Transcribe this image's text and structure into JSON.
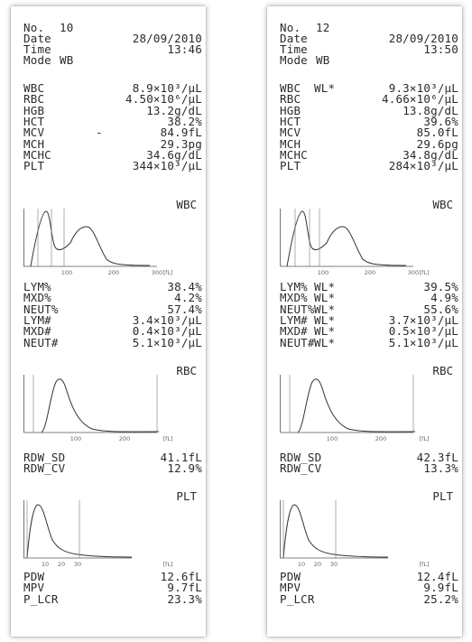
{
  "printouts": [
    {
      "header": [
        {
          "label": "No.",
          "value": "10",
          "align": "left"
        },
        {
          "label": "Date",
          "value": "28/09/2010",
          "align": "right"
        },
        {
          "label": "Time",
          "value": "13:46",
          "align": "right"
        },
        {
          "label": "Mode",
          "value": "WB",
          "align": "left"
        }
      ],
      "cbc": [
        {
          "label": "WBC",
          "flag": "",
          "value": "8.9×10³/µL"
        },
        {
          "label": "RBC",
          "flag": "",
          "value": "4.50×10⁶/µL"
        },
        {
          "label": "HGB",
          "flag": "",
          "value": "13.2g/dL"
        },
        {
          "label": "HCT",
          "flag": "",
          "value": "38.2%"
        },
        {
          "label": "MCV",
          "flag": "-",
          "value": "84.9fL"
        },
        {
          "label": "MCH",
          "flag": "",
          "value": "29.3pg"
        },
        {
          "label": "MCHC",
          "flag": "",
          "value": "34.6g/dL"
        },
        {
          "label": "PLT",
          "flag": "",
          "value": "344×10³/µL"
        }
      ],
      "wbc_hist": {
        "label": "WBC",
        "ticks": [
          "100",
          "200",
          "300"
        ],
        "unit": "[fL]"
      },
      "diff": [
        {
          "label": "LYM%",
          "flag": "",
          "value": "38.4%"
        },
        {
          "label": "MXD%",
          "flag": "",
          "value": "4.2%"
        },
        {
          "label": "NEUT%",
          "flag": "",
          "value": "57.4%"
        },
        {
          "label": "LYM#",
          "flag": "",
          "value": "3.4×10³/µL"
        },
        {
          "label": "MXD#",
          "flag": "",
          "value": "0.4×10³/µL"
        },
        {
          "label": "NEUT#",
          "flag": "",
          "value": "5.1×10³/µL"
        }
      ],
      "rbc_hist": {
        "label": "RBC",
        "ticks": [
          "100",
          "200"
        ],
        "unit": "[fL]"
      },
      "rdw": [
        {
          "label": "RDW_SD",
          "flag": "",
          "value": "41.1fL"
        },
        {
          "label": "RDW_CV",
          "flag": "",
          "value": "12.9%"
        }
      ],
      "plt_hist": {
        "label": "PLT",
        "ticks": [
          "10",
          "20",
          "30"
        ],
        "unit": "[fL]"
      },
      "plt_params": [
        {
          "label": "PDW",
          "flag": "",
          "value": "12.6fL"
        },
        {
          "label": "MPV",
          "flag": "",
          "value": "9.7fL"
        },
        {
          "label": "P_LCR",
          "flag": "",
          "value": "23.3%"
        }
      ]
    },
    {
      "header": [
        {
          "label": "No.",
          "value": "12",
          "align": "left"
        },
        {
          "label": "Date",
          "value": "28/09/2010",
          "align": "right"
        },
        {
          "label": "Time",
          "value": "13:50",
          "align": "right"
        },
        {
          "label": "Mode",
          "value": "WB",
          "align": "left"
        }
      ],
      "cbc": [
        {
          "label": "WBC",
          "flag": "WL*",
          "value": "9.3×10³/µL"
        },
        {
          "label": "RBC",
          "flag": "",
          "value": "4.66×10⁶/µL"
        },
        {
          "label": "HGB",
          "flag": "",
          "value": "13.8g/dL"
        },
        {
          "label": "HCT",
          "flag": "",
          "value": "39.6%"
        },
        {
          "label": "MCV",
          "flag": "",
          "value": "85.0fL"
        },
        {
          "label": "MCH",
          "flag": "",
          "value": "29.6pg"
        },
        {
          "label": "MCHC",
          "flag": "",
          "value": "34.8g/dL"
        },
        {
          "label": "PLT",
          "flag": "",
          "value": "284×10³/µL"
        }
      ],
      "wbc_hist": {
        "label": "WBC",
        "ticks": [
          "100",
          "200",
          "300"
        ],
        "unit": "[fL]"
      },
      "diff": [
        {
          "label": "LYM%",
          "flag": "WL*",
          "value": "39.5%"
        },
        {
          "label": "MXD%",
          "flag": "WL*",
          "value": "4.9%"
        },
        {
          "label": "NEUT%",
          "flag": "WL*",
          "value": "55.6%"
        },
        {
          "label": "LYM#",
          "flag": "WL*",
          "value": "3.7×10³/µL"
        },
        {
          "label": "MXD#",
          "flag": "WL*",
          "value": "0.5×10³/µL"
        },
        {
          "label": "NEUT#",
          "flag": "WL*",
          "value": "5.1×10³/µL"
        }
      ],
      "rbc_hist": {
        "label": "RBC",
        "ticks": [
          "100",
          "200"
        ],
        "unit": "[fL]"
      },
      "rdw": [
        {
          "label": "RDW_SD",
          "flag": "",
          "value": "42.3fL"
        },
        {
          "label": "RDW_CV",
          "flag": "",
          "value": "13.3%"
        }
      ],
      "plt_hist": {
        "label": "PLT",
        "ticks": [
          "10",
          "20",
          "30"
        ],
        "unit": "[fL]"
      },
      "plt_params": [
        {
          "label": "PDW",
          "flag": "",
          "value": "12.4fL"
        },
        {
          "label": "MPV",
          "flag": "",
          "value": "9.9fL"
        },
        {
          "label": "P_LCR",
          "flag": "",
          "value": "25.2%"
        }
      ]
    }
  ]
}
